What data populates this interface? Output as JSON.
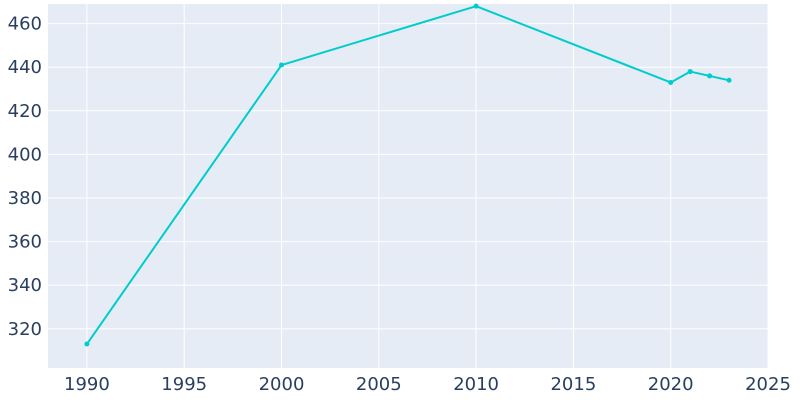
{
  "chart_data": {
    "type": "line",
    "title": "",
    "xlabel": "",
    "ylabel": "",
    "x": [
      1990,
      2000,
      2010,
      2020,
      2021,
      2022,
      2023
    ],
    "series": [
      {
        "values": [
          313,
          441,
          468,
          433,
          438,
          436,
          434
        ]
      }
    ],
    "xlim": [
      1988,
      2025
    ],
    "ylim": [
      302,
      469
    ],
    "x_ticks": [
      1990,
      1995,
      2000,
      2005,
      2010,
      2015,
      2020,
      2025
    ],
    "y_ticks": [
      320,
      340,
      360,
      380,
      400,
      420,
      440,
      460
    ],
    "grid": true,
    "legend": "none",
    "colors": {
      "line": "#00cccc",
      "plot_background": "#e5ecf6",
      "grid": "#ffffff",
      "tick_text": "#2a3f5f"
    }
  }
}
